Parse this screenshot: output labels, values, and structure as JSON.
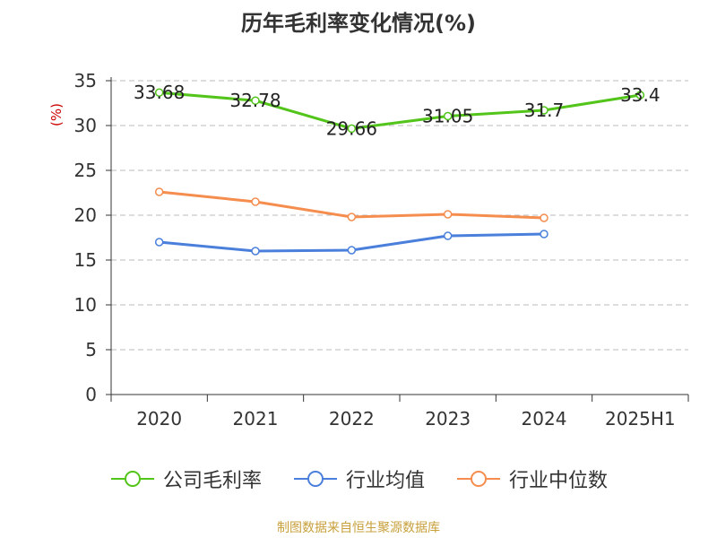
{
  "title": "历年毛利率变化情况(%)",
  "footer": "制图数据来自恒生聚源数据库",
  "chart_data": {
    "type": "line",
    "title": "历年毛利率变化情况(%)",
    "ylabel": "(%)",
    "xlabel": "",
    "categories": [
      "2020",
      "2021",
      "2022",
      "2023",
      "2024",
      "2025H1"
    ],
    "ylim": [
      0,
      35
    ],
    "yticks": [
      0,
      5,
      10,
      15,
      20,
      25,
      30,
      35
    ],
    "grid": true,
    "legend_position": "bottom",
    "series": [
      {
        "name": "公司毛利率",
        "color": "#52c41a",
        "values": [
          33.68,
          32.78,
          29.66,
          31.05,
          31.7,
          33.4
        ],
        "labels": [
          "33.68",
          "32.78",
          "29.66",
          "31.05",
          "31.7",
          "33.4"
        ]
      },
      {
        "name": "行业均值",
        "color": "#4a7fdb",
        "values": [
          17.0,
          16.0,
          16.1,
          17.7,
          17.9,
          null
        ]
      },
      {
        "name": "行业中位数",
        "color": "#f58d4e",
        "values": [
          22.6,
          21.5,
          19.8,
          20.1,
          19.7,
          null
        ]
      }
    ]
  }
}
